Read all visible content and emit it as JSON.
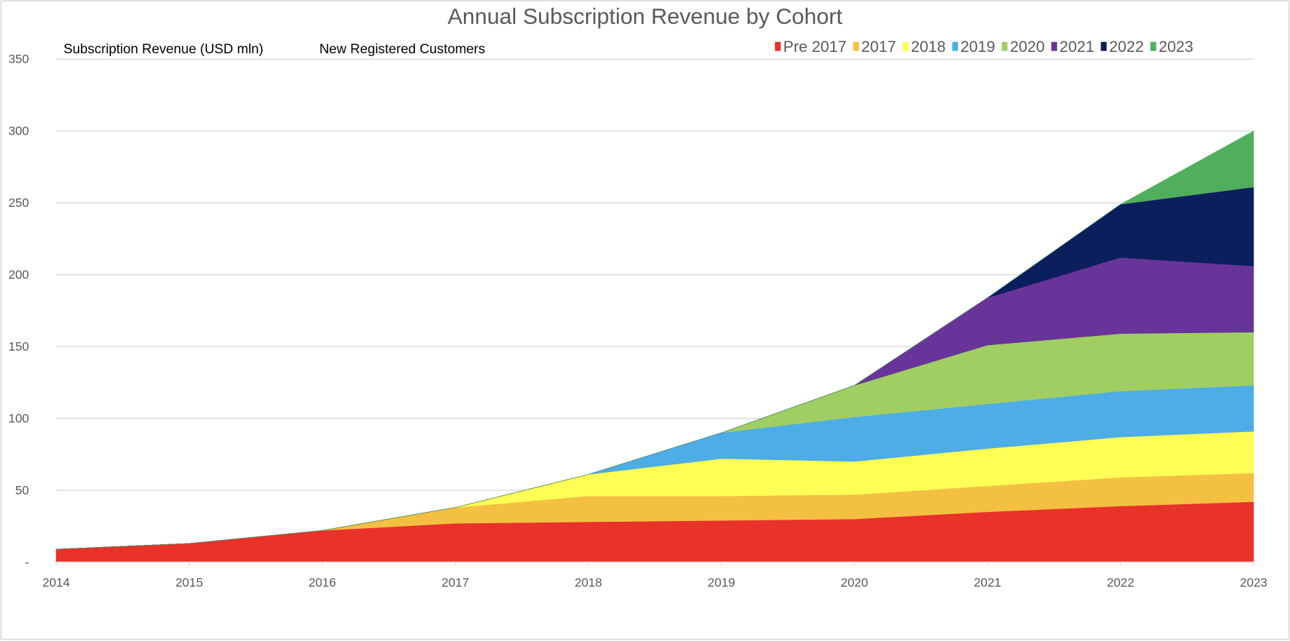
{
  "chart_data": {
    "type": "area",
    "stacked": true,
    "title": "Annual Subscription Revenue by Cohort",
    "header_labels": [
      "Subscription Revenue (USD mln)",
      "New Registered Customers"
    ],
    "xlabel": "",
    "ylabel": "",
    "categories": [
      "2014",
      "2015",
      "2016",
      "2017",
      "2018",
      "2019",
      "2020",
      "2021",
      "2022",
      "2023"
    ],
    "ylim": [
      0,
      350
    ],
    "yticks": [
      0,
      50,
      100,
      150,
      200,
      250,
      300,
      350
    ],
    "ytick_labels": [
      "-",
      "50",
      "100",
      "150",
      "200",
      "250",
      "300",
      "350"
    ],
    "grid": true,
    "legend_position": "top-right",
    "series": [
      {
        "name": "Pre 2017",
        "color": "#E8322A",
        "values": [
          9,
          13,
          22,
          27,
          28,
          29,
          30,
          35,
          39,
          42
        ]
      },
      {
        "name": "2017",
        "color": "#F4C042",
        "values": [
          0,
          0,
          0,
          11,
          18,
          17,
          17,
          18,
          20,
          20
        ]
      },
      {
        "name": "2018",
        "color": "#FFFF55",
        "values": [
          0,
          0,
          0,
          0,
          15,
          26,
          23,
          26,
          28,
          29
        ]
      },
      {
        "name": "2019",
        "color": "#4EADE6",
        "values": [
          0,
          0,
          0,
          0,
          0,
          18,
          31,
          31,
          32,
          32
        ]
      },
      {
        "name": "2020",
        "color": "#A0CE63",
        "values": [
          0,
          0,
          0,
          0,
          0,
          0,
          22,
          41,
          40,
          37
        ]
      },
      {
        "name": "2021",
        "color": "#68349A",
        "values": [
          0,
          0,
          0,
          0,
          0,
          0,
          0,
          33,
          53,
          46
        ]
      },
      {
        "name": "2022",
        "color": "#0B1F5C",
        "values": [
          0,
          0,
          0,
          0,
          0,
          0,
          0,
          0,
          37,
          55
        ]
      },
      {
        "name": "2023",
        "color": "#51AE5C",
        "values": [
          0,
          0,
          0,
          0,
          0,
          0,
          0,
          0,
          0,
          39
        ]
      }
    ]
  }
}
